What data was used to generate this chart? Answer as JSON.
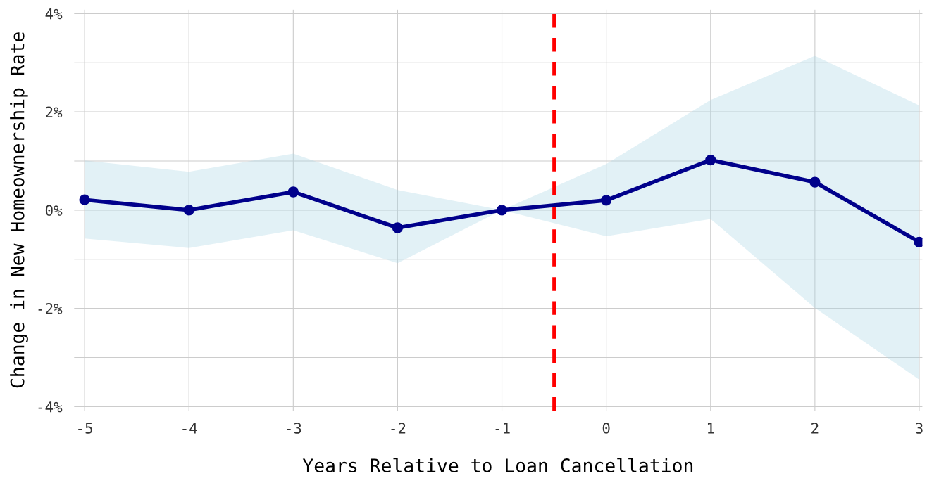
{
  "chart_data": {
    "type": "line",
    "xlabel": "Years Relative to Loan Cancellation",
    "ylabel": "Change in New Homeownership Rate",
    "x": [
      -5,
      -4,
      -3,
      -2,
      -1,
      0,
      1,
      2,
      3
    ],
    "series": [
      {
        "color": "#00008b",
        "values": [
          0.21,
          0,
          0.37,
          -0.36,
          0,
          0.2,
          1.02,
          0.57,
          -0.65
        ],
        "lower": [
          -0.58,
          -0.77,
          -0.41,
          -1.08,
          0,
          -0.53,
          -0.18,
          -1.99,
          -3.45
        ],
        "upper": [
          1.01,
          0.78,
          1.15,
          0.41,
          0,
          0.94,
          2.24,
          3.14,
          2.13
        ]
      }
    ],
    "marker": "circle",
    "line_style": "solid",
    "xlim": [
      -5.1,
      3.03
    ],
    "xticks": [
      -5,
      -4,
      -3,
      -2,
      -1,
      0,
      1,
      2,
      3
    ],
    "ylim": [
      -4.08,
      4.08
    ],
    "yticks": [
      {
        "value": -4,
        "label": "-4%"
      },
      {
        "value": -3,
        "label": null
      },
      {
        "value": -2,
        "label": "-2%"
      },
      {
        "value": -1,
        "label": null
      },
      {
        "value": 0,
        "label": "0%"
      },
      {
        "value": 1,
        "label": null
      },
      {
        "value": 2,
        "label": "2%"
      },
      {
        "value": 3,
        "label": null
      },
      {
        "value": 4,
        "label": "4%"
      }
    ],
    "ref_lines": [
      {
        "axis": "x",
        "value": -0.5,
        "color": "#ff0000",
        "line_style": "dashed"
      }
    ],
    "grid": true
  }
}
